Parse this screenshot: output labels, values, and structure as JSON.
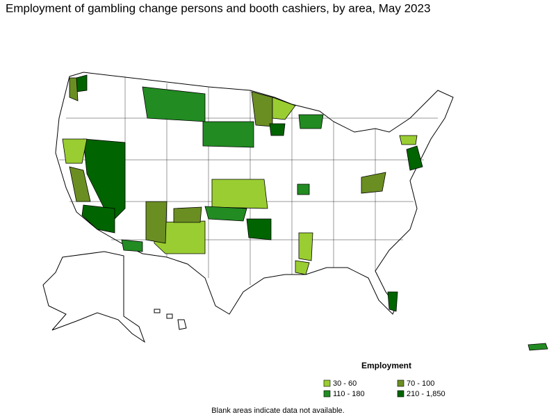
{
  "title": "Employment of gambling change persons and booth cashiers, by area, May 2023",
  "legend": {
    "title": "Employment",
    "items": [
      {
        "label": "30 - 60",
        "color": "#9acd32"
      },
      {
        "label": "70 - 100",
        "color": "#6b8e23"
      },
      {
        "label": "110 - 180",
        "color": "#228b22"
      },
      {
        "label": "210 - 1,850",
        "color": "#006400"
      }
    ]
  },
  "note": "Blank areas indicate data not available."
}
